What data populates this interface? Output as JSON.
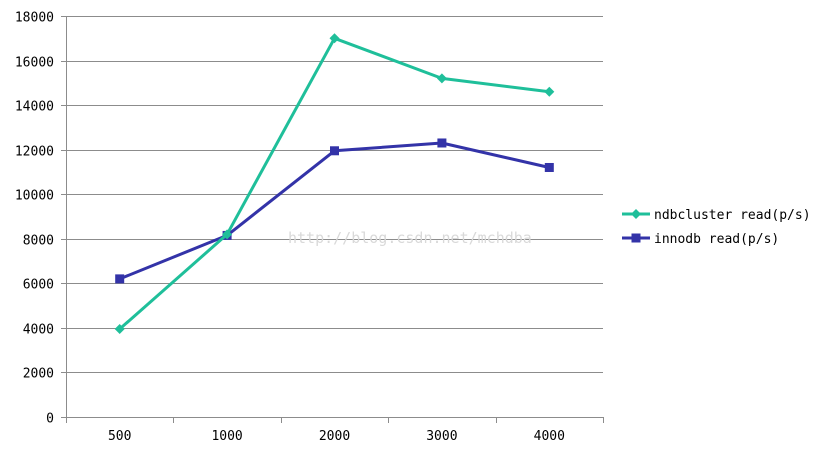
{
  "chart_data": {
    "type": "line",
    "categories": [
      "500",
      "1000",
      "2000",
      "3000",
      "4000"
    ],
    "series": [
      {
        "name": "ndbcluster read(p/s)",
        "values": [
          3950,
          8200,
          17000,
          15200,
          14600
        ],
        "color": "#1fbf9a",
        "marker": "diamond"
      },
      {
        "name": "innodb read(p/s)",
        "values": [
          6200,
          8150,
          11950,
          12300,
          11200
        ],
        "color": "#3333a8",
        "marker": "square"
      }
    ],
    "yticks": [
      "0",
      "2000",
      "4000",
      "6000",
      "8000",
      "10000",
      "12000",
      "14000",
      "16000",
      "18000"
    ],
    "ylim": [
      0,
      18000
    ],
    "grid": true,
    "legend": "right",
    "watermark": "http://blog.csdn.net/mchdba"
  }
}
